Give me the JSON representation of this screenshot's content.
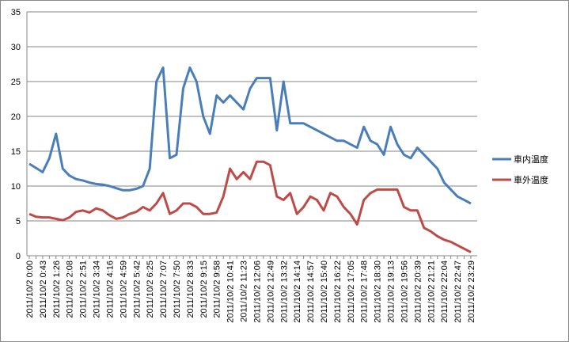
{
  "chart_data": {
    "type": "line",
    "categories": [
      "2011/10/2 0:00",
      null,
      "2011/10/2 0:43",
      null,
      "2011/10/2 1:26",
      null,
      "2011/10/2 2:08",
      null,
      "2011/10/2 2:51",
      null,
      "2011/10/2 3:34",
      null,
      "2011/10/2 4:16",
      null,
      "2011/10/2 4:59",
      null,
      "2011/10/2 5:42",
      null,
      "2011/10/2 6:25",
      null,
      "2011/10/2 7:07",
      null,
      "2011/10/2 7:50",
      null,
      "2011/10/2 8:33",
      null,
      "2011/10/2 9:15",
      null,
      "2011/10/2 9:58",
      null,
      "2011/10/2 10:41",
      null,
      "2011/10/2 11:23",
      null,
      "2011/10/2 12:06",
      null,
      "2011/10/2 12:49",
      null,
      "2011/10/2 13:32",
      null,
      "2011/10/2 14:14",
      null,
      "2011/10/2 14:57",
      null,
      "2011/10/2 15:40",
      null,
      "2011/10/2 16:22",
      null,
      "2011/10/2 17:05",
      null,
      "2011/10/2 17:48",
      null,
      "2011/10/2 18:30",
      null,
      "2011/10/2 19:13",
      null,
      "2011/10/2 19:56",
      null,
      "2011/10/2 20:39",
      null,
      "2011/10/2 21:21",
      null,
      "2011/10/2 22:04",
      null,
      "2011/10/2 22:47",
      null,
      "2011/10/2 23:29"
    ],
    "series": [
      {
        "name": "車内温度",
        "color": "#4a7ebb",
        "values": [
          13.2,
          12.6,
          12.0,
          14.0,
          17.5,
          12.5,
          11.5,
          11.0,
          10.8,
          10.5,
          10.3,
          10.2,
          10.0,
          9.7,
          9.4,
          9.4,
          9.6,
          10.0,
          12.5,
          25,
          27,
          14,
          14.5,
          24,
          27,
          25,
          20,
          17.5,
          23,
          22,
          23,
          22,
          21,
          24,
          25.5,
          25.5,
          25.5,
          18,
          25,
          19,
          19,
          19,
          18.5,
          18,
          17.5,
          17,
          16.5,
          16.5,
          16,
          15.5,
          18.5,
          16.5,
          16,
          14.5,
          18.5,
          16,
          14.5,
          14,
          15.5,
          14.5,
          13.5,
          12.5,
          10.5,
          9.5,
          8.5,
          8,
          7.5
        ]
      },
      {
        "name": "車外温度",
        "color": "#be4b48",
        "values": [
          6.0,
          5.6,
          5.5,
          5.5,
          5.3,
          5.1,
          5.5,
          6.3,
          6.5,
          6.2,
          6.8,
          6.5,
          5.8,
          5.3,
          5.5,
          6.0,
          6.3,
          7.0,
          6.5,
          7.5,
          9,
          6,
          6.5,
          7.5,
          7.5,
          7,
          6,
          6,
          6.2,
          8.5,
          12.5,
          11,
          12,
          11,
          13.5,
          13.5,
          13,
          8.5,
          8,
          9,
          6,
          7,
          8.5,
          8,
          6.5,
          9,
          8.5,
          7,
          6,
          4.5,
          8,
          9,
          9.5,
          9.5,
          9.5,
          9.5,
          7,
          6.5,
          6.5,
          4,
          3.5,
          2.8,
          2.3,
          2.0,
          1.5,
          1.0,
          0.5
        ]
      }
    ],
    "ylim": [
      0,
      35
    ],
    "yticks": [
      0,
      5,
      10,
      15,
      20,
      25,
      30,
      35
    ],
    "grid": true
  }
}
